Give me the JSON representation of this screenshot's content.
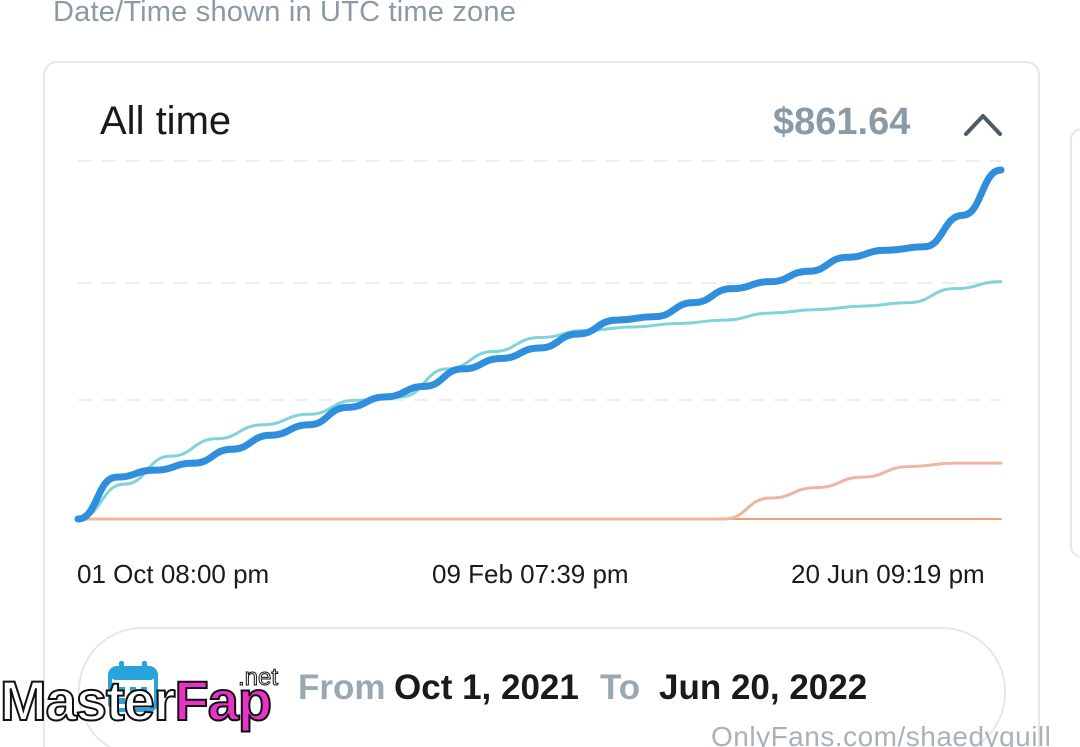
{
  "timezone_note": "Date/Time shown in UTC time zone",
  "card": {
    "title": "All time",
    "total": "$861.64",
    "collapse_icon": "chevron-up-icon"
  },
  "chart_data": {
    "type": "line",
    "title": "",
    "xlabel": "",
    "ylabel": "",
    "x_tick_labels": [
      "01 Oct 08:00 pm",
      "09 Feb 07:39 pm",
      "20 Jun 09:19 pm"
    ],
    "grid": "horizontal dashed",
    "colors": [
      "#2f8fdd",
      "#7fd3d9",
      "#eeb6a0"
    ],
    "series": [
      {
        "color": "#2f8fdd",
        "values": [
          0,
          0.12,
          0.14,
          0.16,
          0.2,
          0.24,
          0.27,
          0.32,
          0.35,
          0.38,
          0.43,
          0.46,
          0.49,
          0.53,
          0.57,
          0.58,
          0.62,
          0.66,
          0.68,
          0.71,
          0.75,
          0.77,
          0.78,
          0.87,
          1.0
        ]
      },
      {
        "color": "#7fd3d9",
        "values": [
          0,
          0.1,
          0.18,
          0.23,
          0.27,
          0.3,
          0.34,
          0.35,
          0.43,
          0.48,
          0.52,
          0.54,
          0.55,
          0.56,
          0.57,
          0.59,
          0.6,
          0.61,
          0.62,
          0.66,
          0.68
        ]
      },
      {
        "color": "#eeb6a0",
        "values": [
          0,
          0,
          0,
          0,
          0,
          0,
          0,
          0,
          0,
          0,
          0,
          0,
          0,
          0,
          0,
          0.06,
          0.09,
          0.12,
          0.15,
          0.16,
          0.16
        ]
      },
      {
        "color": "#f0a070",
        "values": [
          0,
          0,
          0,
          0,
          0,
          0,
          0,
          0,
          0,
          0,
          0,
          0,
          0,
          0,
          0,
          0,
          0,
          0,
          0,
          0,
          0
        ]
      }
    ]
  },
  "range": {
    "icon": "calendar-icon",
    "from_label": "From",
    "from_value": "Oct 1, 2021",
    "to_label": "To",
    "to_value": "Jun 20, 2022"
  },
  "watermarks": {
    "left_main": "Master",
    "left_accent": "Fap",
    "left_suffix": ".net",
    "right": "OnlyFans.com/shaedyquill"
  }
}
